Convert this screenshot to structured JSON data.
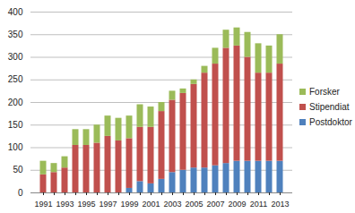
{
  "chart_data": {
    "type": "bar",
    "stacked": true,
    "grid": true,
    "legend": "right",
    "categories": [
      "1991",
      null,
      "1993",
      null,
      "1995",
      null,
      "1997",
      null,
      "1999",
      null,
      "2001",
      null,
      "2003",
      null,
      "2005",
      null,
      "2007",
      null,
      "2009",
      null,
      "2011",
      null,
      "2013"
    ],
    "series": [
      {
        "name": "Postdoktor",
        "color": "#4f81bd",
        "values": [
          0,
          0,
          0,
          0,
          0,
          0,
          0,
          0,
          10,
          25,
          20,
          30,
          45,
          50,
          55,
          55,
          60,
          65,
          70,
          70,
          70,
          70,
          70
        ]
      },
      {
        "name": "Stipendiat",
        "color": "#c0504d",
        "values": [
          40,
          45,
          55,
          105,
          105,
          110,
          125,
          115,
          110,
          120,
          125,
          150,
          160,
          170,
          185,
          210,
          225,
          255,
          255,
          230,
          195,
          195,
          215
        ]
      },
      {
        "name": "Forsker",
        "color": "#9bbb59",
        "values": [
          30,
          20,
          25,
          35,
          35,
          40,
          45,
          50,
          50,
          50,
          45,
          20,
          20,
          10,
          10,
          15,
          35,
          40,
          40,
          55,
          65,
          60,
          65
        ]
      }
    ],
    "ylim": [
      0,
      400
    ],
    "yticks": [
      0,
      50,
      100,
      150,
      200,
      250,
      300,
      350,
      400
    ]
  }
}
